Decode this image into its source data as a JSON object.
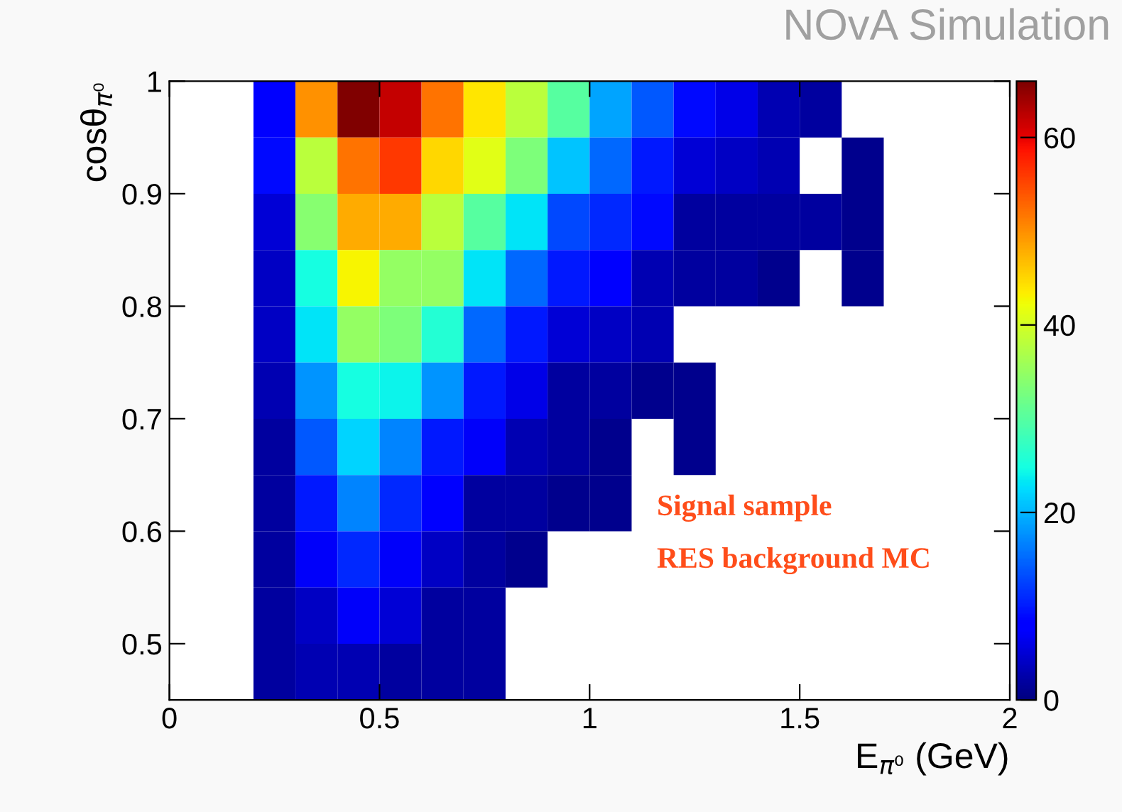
{
  "chart_data": {
    "type": "heatmap",
    "title": "NOvA Simulation",
    "xlabel": "E$_{π⁰}$ (GeV)",
    "ylabel": "cosθ$_{π⁰}$",
    "annotations": [
      "Signal sample",
      "RES background MC"
    ],
    "xlim": [
      0,
      2
    ],
    "xticks": [
      0,
      0.5,
      1,
      1.5,
      2
    ],
    "ylim": [
      0.45,
      1
    ],
    "yticks": [
      0.5,
      0.6,
      0.7,
      0.8,
      0.9,
      1
    ],
    "clim": [
      0,
      66
    ],
    "cticks": [
      0,
      20,
      40,
      60
    ],
    "cells": [
      [
        null,
        null,
        8,
        50,
        66,
        62,
        52,
        44,
        38,
        30,
        19,
        14,
        9,
        6,
        3,
        2,
        null,
        null,
        null,
        null
      ],
      [
        null,
        null,
        9,
        38,
        52,
        56,
        45,
        41,
        33,
        21,
        15,
        10,
        5,
        4,
        3,
        null,
        1,
        null,
        null,
        null
      ],
      [
        null,
        null,
        5,
        34,
        48,
        48,
        38,
        30,
        23,
        13,
        11,
        9,
        2,
        2,
        2,
        2,
        1,
        null,
        null,
        null
      ],
      [
        null,
        null,
        4,
        25,
        43,
        35,
        35,
        23,
        15,
        10,
        8,
        3,
        2,
        2,
        1,
        null,
        1,
        null,
        null,
        null
      ],
      [
        null,
        null,
        4,
        23,
        35,
        33,
        26,
        15,
        10,
        5,
        4,
        3,
        null,
        null,
        null,
        null,
        null,
        null,
        null,
        null
      ],
      [
        null,
        null,
        3,
        18,
        25,
        24,
        18,
        10,
        6,
        2,
        2,
        1,
        1,
        null,
        null,
        null,
        null,
        null,
        null,
        null
      ],
      [
        null,
        null,
        2,
        14,
        22,
        17,
        10,
        7,
        3,
        2,
        1,
        null,
        1,
        null,
        null,
        null,
        null,
        null,
        null,
        null
      ],
      [
        null,
        null,
        2,
        10,
        17,
        11,
        8,
        2,
        2,
        1,
        1,
        null,
        null,
        null,
        null,
        null,
        null,
        null,
        null,
        null
      ],
      [
        null,
        null,
        2,
        7,
        11,
        7,
        4,
        2,
        1,
        null,
        null,
        null,
        null,
        null,
        null,
        null,
        null,
        null,
        null,
        null
      ],
      [
        null,
        null,
        2,
        4,
        7,
        5,
        2,
        2,
        null,
        null,
        null,
        null,
        null,
        null,
        null,
        null,
        null,
        null,
        null,
        null
      ],
      [
        null,
        null,
        2,
        3,
        3,
        2,
        2,
        2,
        null,
        null,
        null,
        null,
        null,
        null,
        null,
        null,
        null,
        null,
        null,
        null
      ]
    ]
  }
}
